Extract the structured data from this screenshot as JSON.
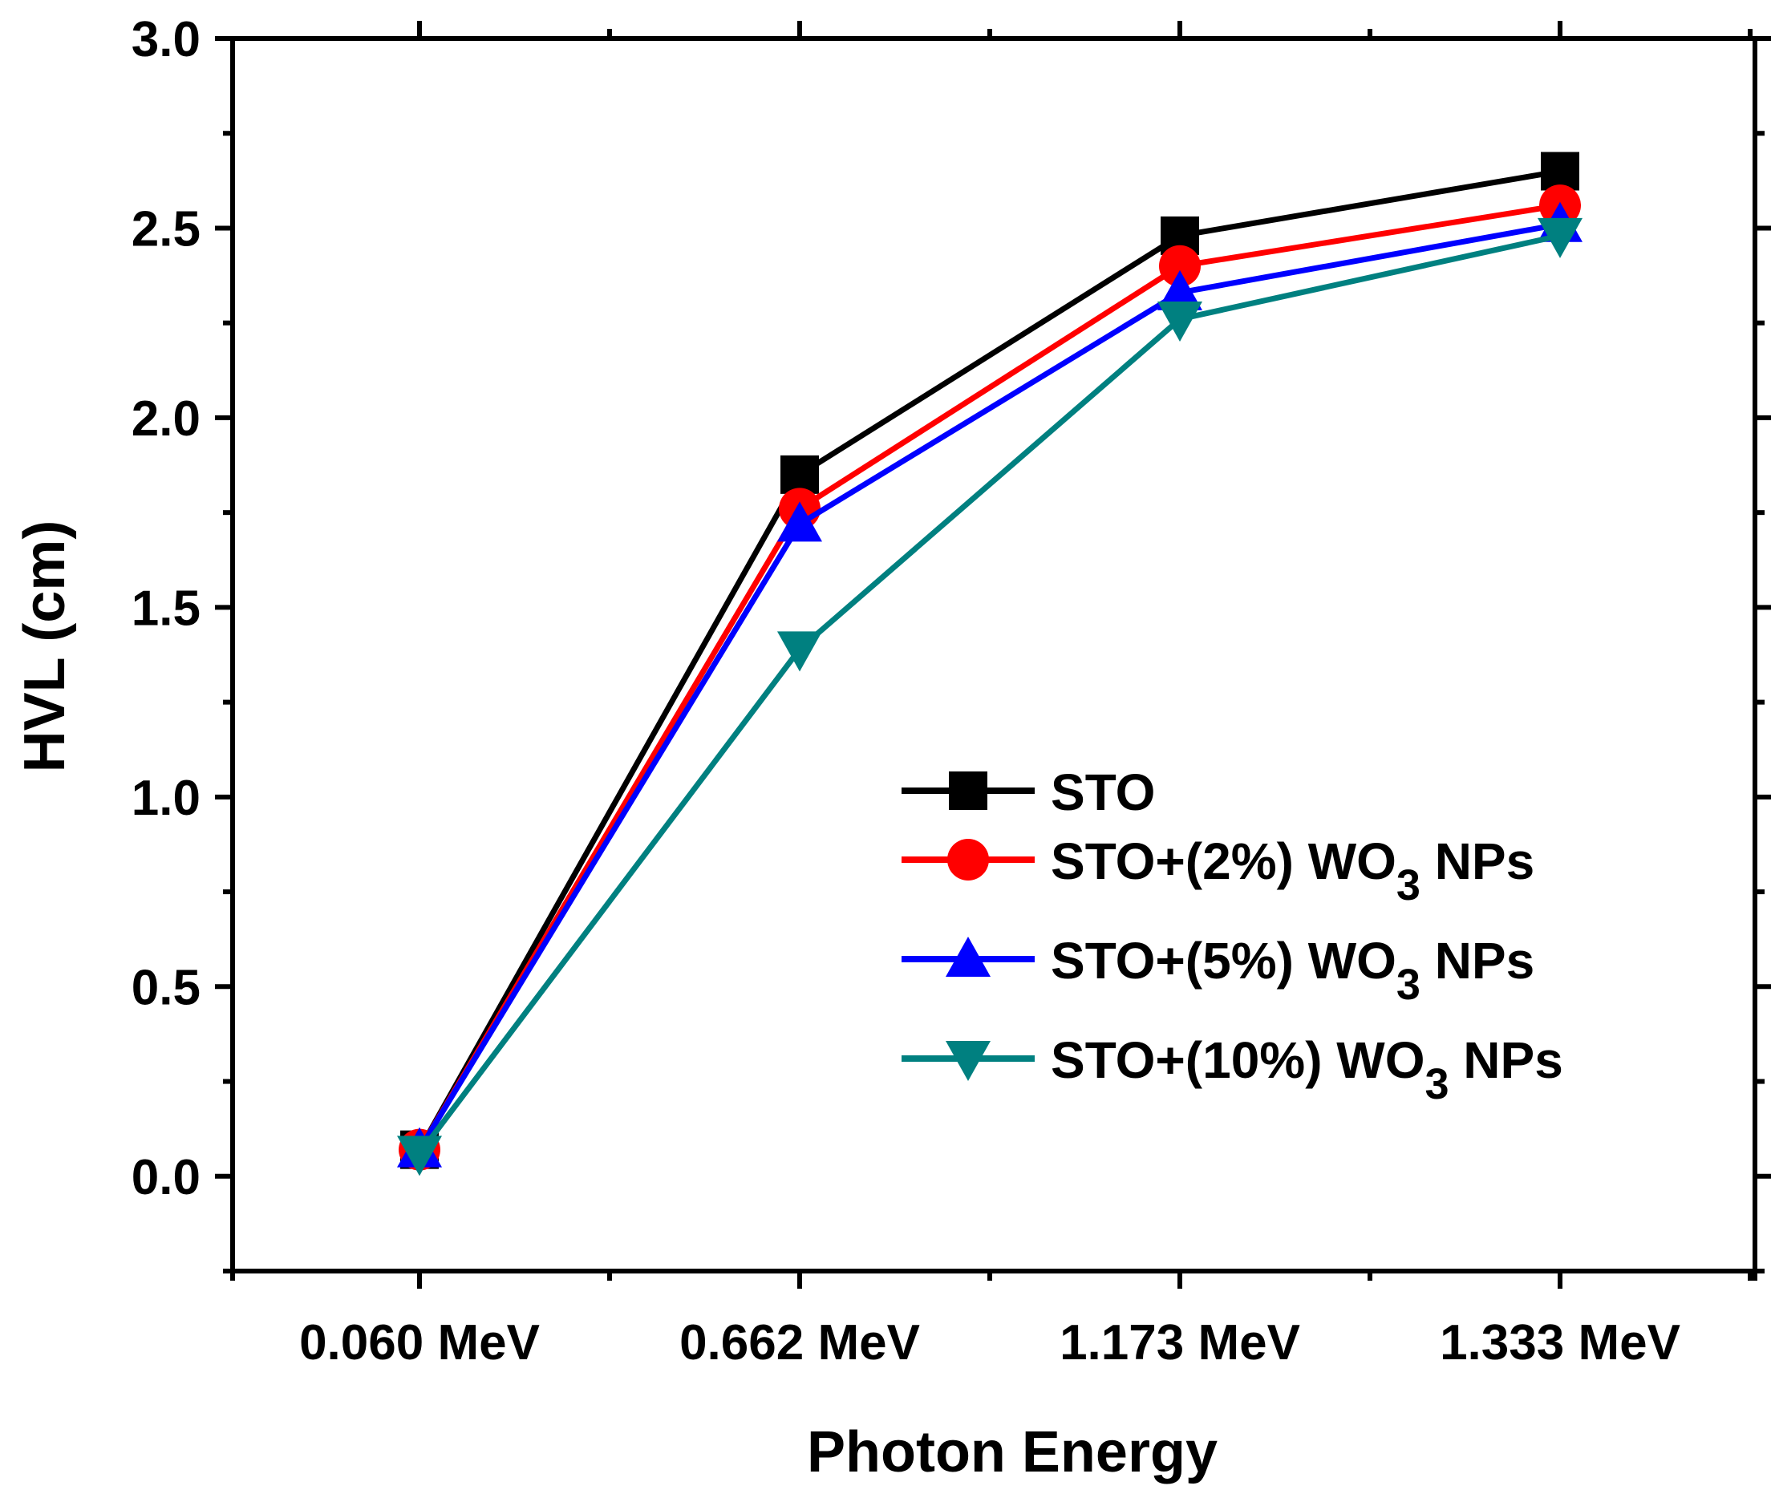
{
  "chart_data": {
    "type": "line",
    "title": "",
    "xlabel": "Photon Energy",
    "ylabel": "HVL (cm)",
    "categories": [
      "0.060 MeV",
      "0.662 MeV",
      "1.173 MeV",
      "1.333 MeV"
    ],
    "ylim": [
      -0.25,
      3.0
    ],
    "yticks": [
      "0.0",
      "0.5",
      "1.0",
      "1.5",
      "2.0",
      "2.5",
      "3.0"
    ],
    "ytick_values": [
      0.0,
      0.5,
      1.0,
      1.5,
      2.0,
      2.5,
      3.0
    ],
    "legend_position": "center-right",
    "series": [
      {
        "name": "STO",
        "legend_main": "STO",
        "legend_sub": "",
        "legend_tail": "",
        "color": "#000000",
        "marker": "square",
        "values": [
          0.07,
          1.85,
          2.48,
          2.65
        ]
      },
      {
        "name": "STO+(2%) WO3 NPs",
        "legend_main": "STO+(2%) WO",
        "legend_sub": "3",
        "legend_tail": " NPs",
        "color": "#ff0000",
        "marker": "circle",
        "values": [
          0.07,
          1.76,
          2.4,
          2.56
        ]
      },
      {
        "name": "STO+(5%) WO3 NPs",
        "legend_main": "STO+(5%) WO",
        "legend_sub": "3",
        "legend_tail": " NPs",
        "color": "#0000ff",
        "marker": "triangle-up",
        "values": [
          0.07,
          1.72,
          2.33,
          2.51
        ]
      },
      {
        "name": "STO+(10%) WO3 NPs",
        "legend_main": "STO+(10%) WO",
        "legend_sub": "3",
        "legend_tail": " NPs",
        "color": "#008080",
        "marker": "triangle-down",
        "values": [
          0.06,
          1.39,
          2.26,
          2.48
        ]
      }
    ]
  }
}
